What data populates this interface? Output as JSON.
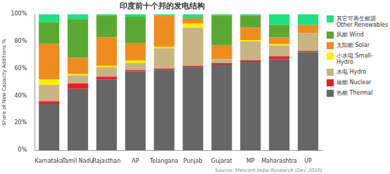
{
  "chart_data": {
    "type": "bar",
    "title": "印度前十个邦的发电结构",
    "y_label": "Share of New Capacity Additions %",
    "source": "Source: Mercom India Research (Dec 2020)",
    "categories": [
      "Karnataka",
      "Tamil Nadu",
      "Rajasthan",
      "AP",
      "Telangana",
      "Punjab",
      "Gujarat",
      "MP",
      "Maharashtra",
      "UP"
    ],
    "series": [
      {
        "name": "热能 Thermal",
        "color": "#666666",
        "values": [
          34,
          45,
          52,
          58,
          59,
          61,
          63,
          65,
          67,
          72
        ]
      },
      {
        "name": "核能 Nuclear",
        "color": "#e8202a",
        "values": [
          2,
          4,
          2,
          1,
          1,
          1,
          1,
          1,
          2,
          1
        ]
      },
      {
        "name": "水电 Hydro",
        "color": "#c8b482",
        "values": [
          12,
          6,
          7,
          5,
          15,
          28,
          3,
          14,
          8,
          13
        ]
      },
      {
        "name": "小水电 Small-Hydro",
        "color": "#ffee00",
        "values": [
          4,
          1,
          1,
          2,
          1,
          3,
          0,
          1,
          1,
          0
        ]
      },
      {
        "name": "太阳能 Solar",
        "color": "#f08c1e",
        "values": [
          26,
          12,
          21,
          13,
          23,
          4,
          10,
          9,
          5,
          6
        ]
      },
      {
        "name": "风能 Wind",
        "color": "#5aa832",
        "values": [
          16,
          28,
          16,
          19,
          0,
          0,
          22,
          9,
          9,
          0
        ]
      },
      {
        "name": "其它可再生能源 Other Renewables",
        "color": "#20e080",
        "values": [
          6,
          4,
          1,
          2,
          1,
          3,
          1,
          1,
          8,
          8
        ]
      }
    ],
    "stacked": true,
    "ylim": [
      0,
      100
    ],
    "yticks": [
      {
        "value": 0,
        "label": "0%"
      },
      {
        "value": 20,
        "label": "20%"
      },
      {
        "value": 40,
        "label": "40%"
      },
      {
        "value": 60,
        "label": "60%"
      },
      {
        "value": 80,
        "label": "80%"
      },
      {
        "value": 100,
        "label": "100%"
      }
    ],
    "grid": false,
    "legend": "right"
  }
}
